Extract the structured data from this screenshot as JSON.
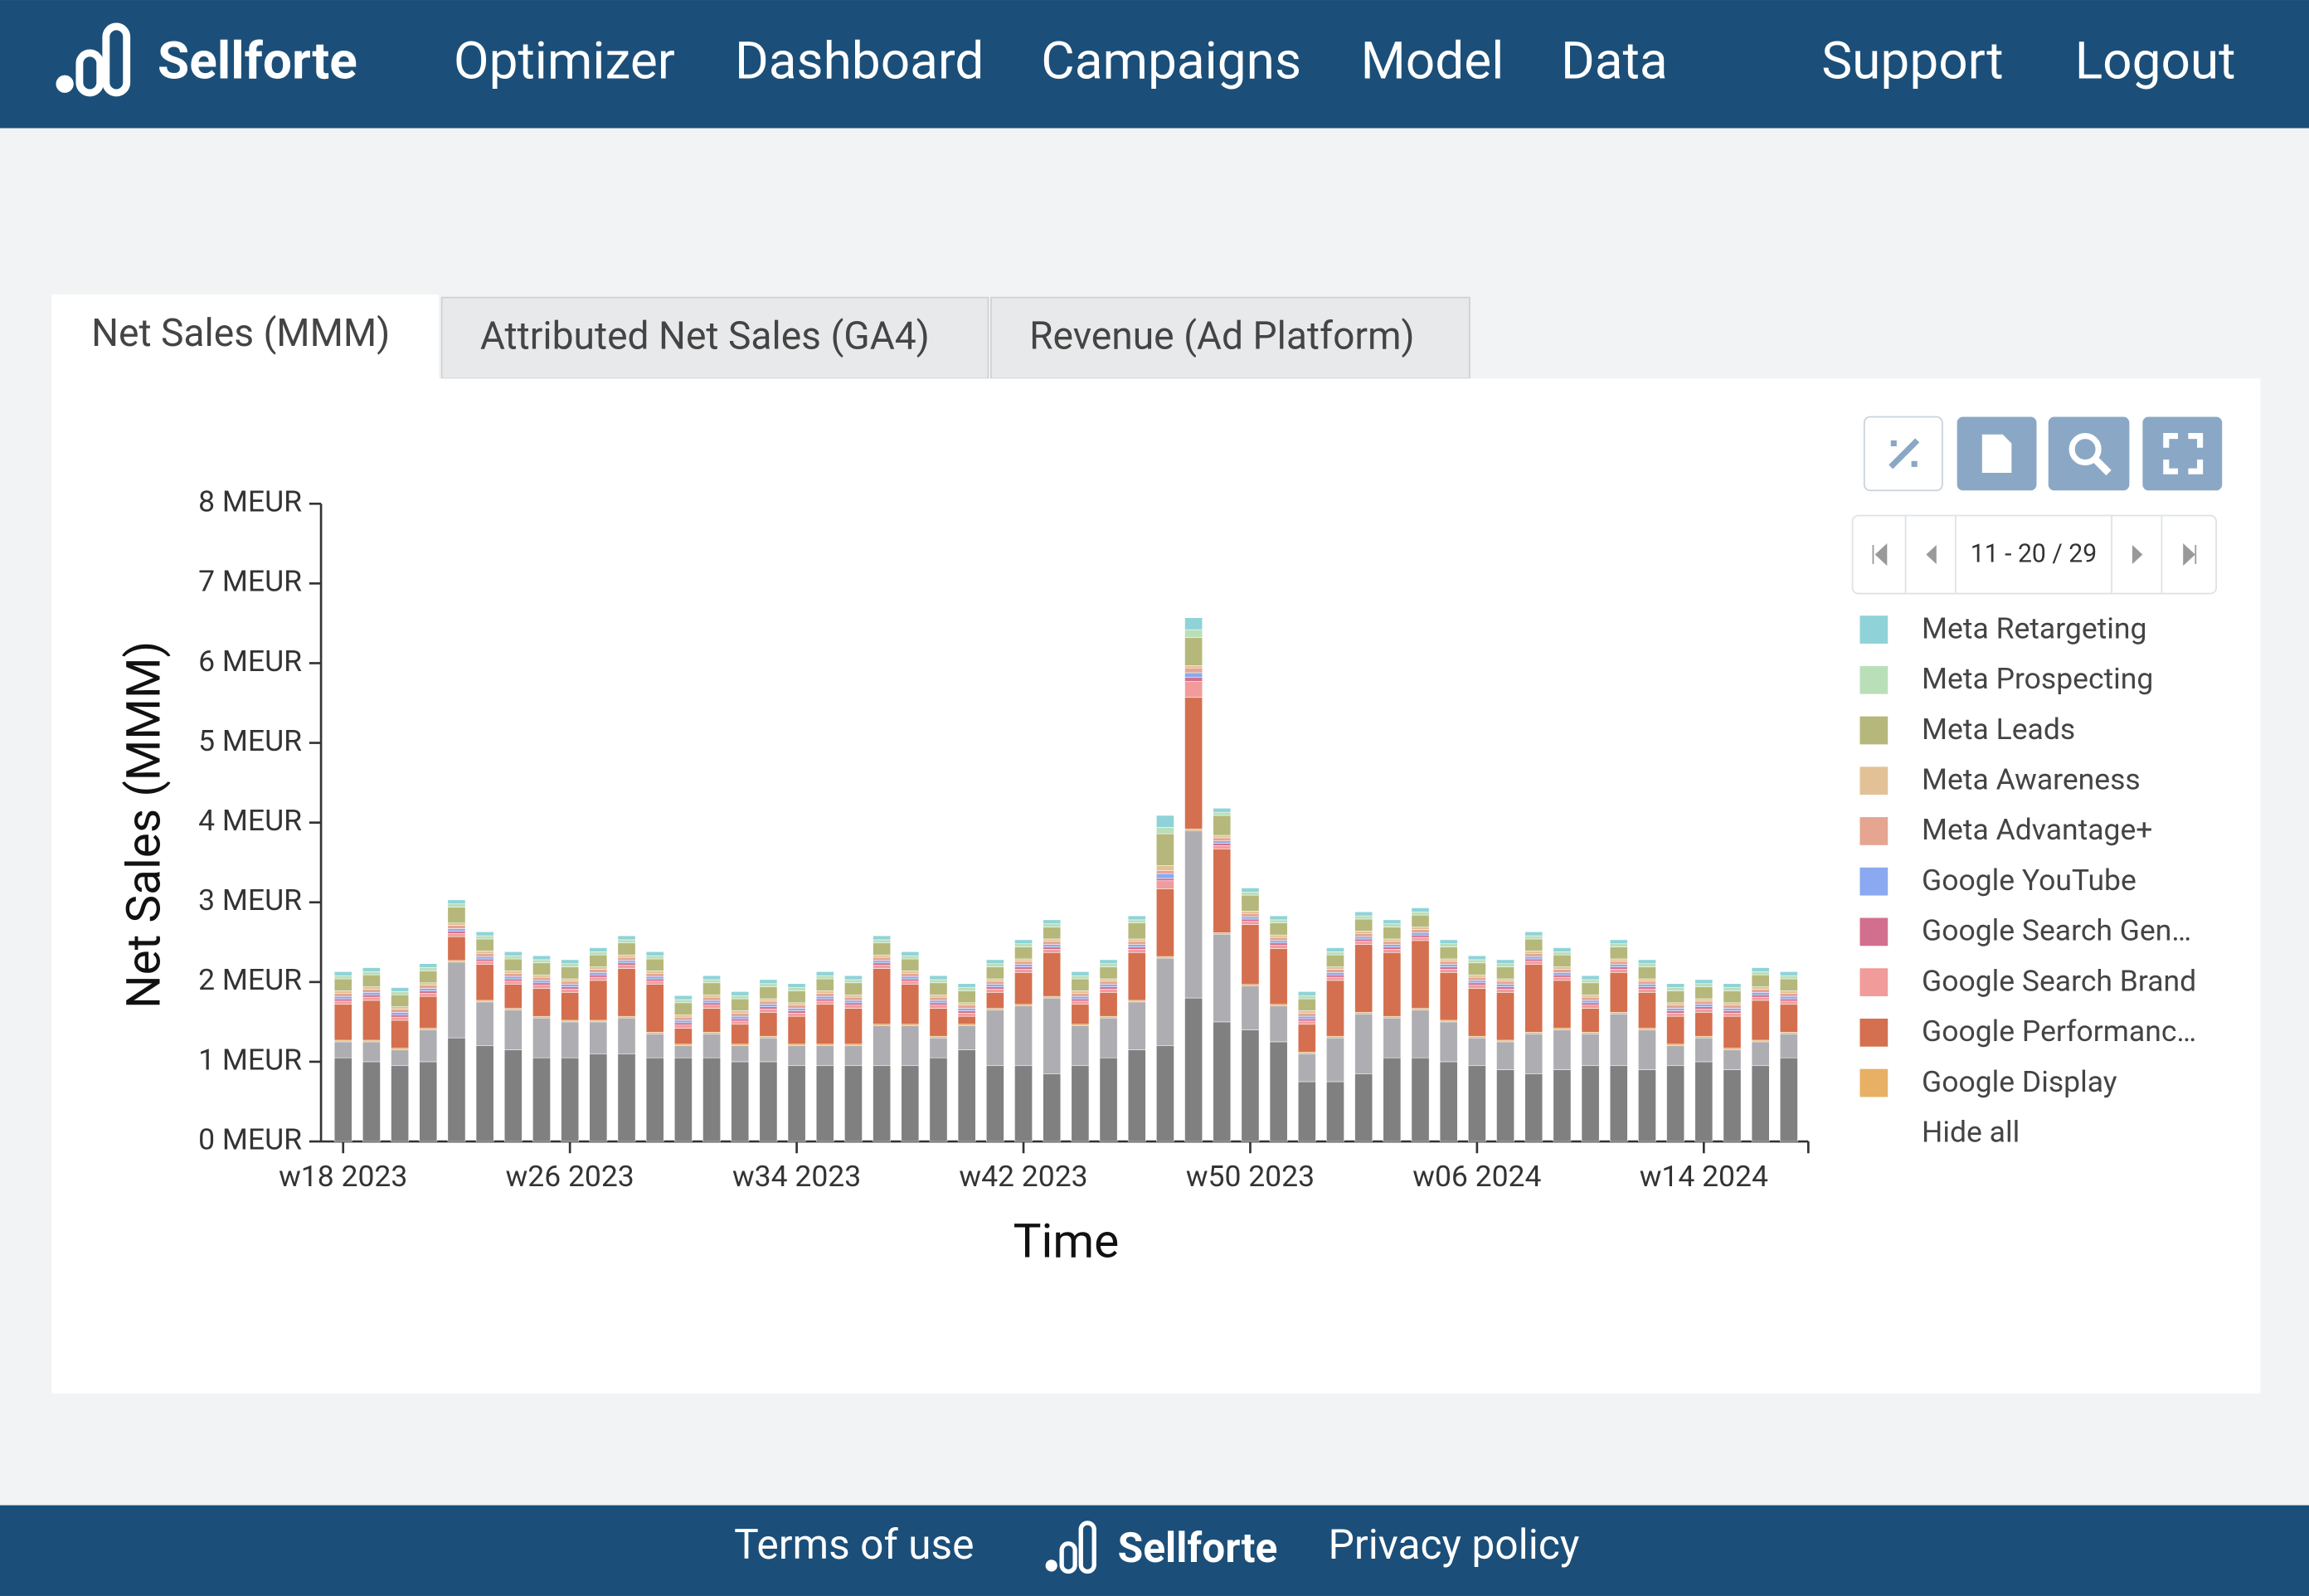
{
  "nav": {
    "brand": "Sellforte",
    "items": [
      "Optimizer",
      "Dashboard",
      "Campaigns",
      "Model",
      "Data",
      "Support",
      "Logout"
    ]
  },
  "tabs": [
    "Net Sales (MMM)",
    "Attributed Net Sales (GA4)",
    "Revenue (Ad Platform)"
  ],
  "pager": "11 - 20 / 29",
  "chart_data": {
    "type": "stacked_bar",
    "xlabel": "Time",
    "ylabel": "Net Sales (MMM)",
    "ylim": [
      0,
      8
    ],
    "yticks": [
      {
        "value": 0,
        "label": "0 MEUR"
      },
      {
        "value": 1,
        "label": "1 MEUR"
      },
      {
        "value": 2,
        "label": "2 MEUR"
      },
      {
        "value": 3,
        "label": "3 MEUR"
      },
      {
        "value": 4,
        "label": "4 MEUR"
      },
      {
        "value": 5,
        "label": "5 MEUR"
      },
      {
        "value": 6,
        "label": "6 MEUR"
      },
      {
        "value": 7,
        "label": "7 MEUR"
      },
      {
        "value": 8,
        "label": "8 MEUR"
      }
    ],
    "categories": [
      "w18 2023",
      null,
      null,
      null,
      null,
      null,
      null,
      null,
      "w26 2023",
      null,
      null,
      null,
      null,
      null,
      null,
      null,
      "w34 2023",
      null,
      null,
      null,
      null,
      null,
      null,
      null,
      "w42 2023",
      null,
      null,
      null,
      null,
      null,
      null,
      null,
      "w50 2023",
      null,
      null,
      null,
      null,
      null,
      null,
      null,
      "w06 2024",
      null,
      null,
      null,
      null,
      null,
      null,
      null,
      "w14 2024",
      null,
      null,
      null
    ],
    "series": [
      {
        "color": "#808080",
        "values": [
          1.05,
          1.0,
          0.95,
          1.0,
          1.3,
          1.2,
          1.15,
          1.05,
          1.05,
          1.1,
          1.1,
          1.05,
          1.05,
          1.05,
          1.0,
          1.0,
          0.95,
          0.95,
          0.95,
          0.95,
          0.95,
          1.05,
          1.15,
          0.95,
          0.95,
          0.85,
          0.95,
          1.05,
          1.15,
          1.2,
          1.8,
          1.5,
          1.4,
          1.25,
          0.75,
          0.75,
          0.85,
          1.05,
          1.05,
          1.0,
          0.95,
          0.9,
          0.85,
          0.9,
          0.95,
          0.95,
          0.9,
          0.95,
          1.0,
          0.9,
          0.95,
          1.05
        ]
      },
      {
        "color": "#aeadb1",
        "values": [
          0.2,
          0.25,
          0.2,
          0.4,
          0.95,
          0.55,
          0.5,
          0.5,
          0.45,
          0.4,
          0.45,
          0.3,
          0.15,
          0.3,
          0.2,
          0.3,
          0.25,
          0.25,
          0.25,
          0.5,
          0.5,
          0.25,
          0.3,
          0.7,
          0.75,
          0.95,
          0.5,
          0.5,
          0.6,
          1.1,
          2.1,
          1.1,
          0.55,
          0.45,
          0.35,
          0.55,
          0.75,
          0.5,
          0.6,
          0.5,
          0.35,
          0.35,
          0.5,
          0.5,
          0.4,
          0.65,
          0.5,
          0.25,
          0.3,
          0.25,
          0.3,
          0.3
        ]
      },
      {
        "name": "Meta Retargeting",
        "color": "#8fd3d8",
        "values": [
          0.05,
          0.05,
          0.05,
          0.05,
          0.05,
          0.05,
          0.05,
          0.05,
          0.05,
          0.05,
          0.05,
          0.05,
          0.05,
          0.05,
          0.05,
          0.05,
          0.05,
          0.05,
          0.05,
          0.05,
          0.05,
          0.05,
          0.05,
          0.05,
          0.05,
          0.05,
          0.05,
          0.05,
          0.05,
          0.15,
          0.15,
          0.05,
          0.05,
          0.05,
          0.05,
          0.05,
          0.05,
          0.05,
          0.05,
          0.05,
          0.05,
          0.05,
          0.05,
          0.05,
          0.05,
          0.05,
          0.05,
          0.05,
          0.05,
          0.05,
          0.05,
          0.05
        ]
      },
      {
        "name": "Meta Prospecting",
        "color": "#b9dfb9",
        "values": [
          0.04,
          0.04,
          0.04,
          0.04,
          0.04,
          0.04,
          0.04,
          0.04,
          0.04,
          0.04,
          0.04,
          0.04,
          0.04,
          0.04,
          0.04,
          0.04,
          0.04,
          0.04,
          0.04,
          0.04,
          0.04,
          0.04,
          0.04,
          0.04,
          0.04,
          0.04,
          0.04,
          0.04,
          0.04,
          0.08,
          0.1,
          0.04,
          0.04,
          0.04,
          0.04,
          0.04,
          0.04,
          0.04,
          0.04,
          0.04,
          0.04,
          0.04,
          0.04,
          0.04,
          0.04,
          0.04,
          0.04,
          0.04,
          0.04,
          0.04,
          0.04,
          0.04
        ]
      },
      {
        "name": "Meta Leads",
        "color": "#b5b87a",
        "values": [
          0.15,
          0.15,
          0.15,
          0.15,
          0.2,
          0.15,
          0.15,
          0.15,
          0.15,
          0.15,
          0.15,
          0.15,
          0.15,
          0.15,
          0.15,
          0.15,
          0.15,
          0.15,
          0.15,
          0.15,
          0.15,
          0.15,
          0.15,
          0.15,
          0.15,
          0.15,
          0.15,
          0.15,
          0.2,
          0.4,
          0.35,
          0.25,
          0.2,
          0.15,
          0.15,
          0.15,
          0.15,
          0.15,
          0.15,
          0.15,
          0.15,
          0.15,
          0.15,
          0.15,
          0.15,
          0.15,
          0.15,
          0.15,
          0.15,
          0.15,
          0.15,
          0.15
        ]
      },
      {
        "name": "Meta Awareness",
        "color": "#e3c196",
        "values": [
          0.03,
          0.03,
          0.03,
          0.03,
          0.03,
          0.03,
          0.03,
          0.03,
          0.03,
          0.03,
          0.03,
          0.03,
          0.03,
          0.03,
          0.03,
          0.03,
          0.03,
          0.03,
          0.03,
          0.03,
          0.03,
          0.03,
          0.03,
          0.03,
          0.03,
          0.03,
          0.03,
          0.03,
          0.03,
          0.06,
          0.03,
          0.03,
          0.03,
          0.03,
          0.03,
          0.03,
          0.03,
          0.03,
          0.03,
          0.03,
          0.03,
          0.03,
          0.03,
          0.03,
          0.03,
          0.03,
          0.03,
          0.03,
          0.03,
          0.03,
          0.03,
          0.03
        ]
      },
      {
        "name": "Meta Advantage+",
        "color": "#e5a590",
        "values": [
          0.04,
          0.04,
          0.04,
          0.04,
          0.04,
          0.04,
          0.04,
          0.04,
          0.04,
          0.04,
          0.04,
          0.04,
          0.04,
          0.04,
          0.04,
          0.04,
          0.04,
          0.04,
          0.04,
          0.04,
          0.04,
          0.04,
          0.04,
          0.04,
          0.04,
          0.04,
          0.04,
          0.04,
          0.04,
          0.04,
          0.06,
          0.04,
          0.04,
          0.04,
          0.04,
          0.04,
          0.04,
          0.04,
          0.04,
          0.04,
          0.04,
          0.04,
          0.04,
          0.04,
          0.04,
          0.04,
          0.04,
          0.04,
          0.04,
          0.04,
          0.04,
          0.04
        ]
      },
      {
        "name": "Google YouTube",
        "color": "#8aa9f0",
        "values": [
          0.03,
          0.03,
          0.03,
          0.03,
          0.03,
          0.03,
          0.03,
          0.03,
          0.03,
          0.03,
          0.03,
          0.03,
          0.03,
          0.03,
          0.03,
          0.03,
          0.03,
          0.03,
          0.03,
          0.03,
          0.03,
          0.03,
          0.03,
          0.03,
          0.03,
          0.03,
          0.03,
          0.03,
          0.03,
          0.06,
          0.06,
          0.03,
          0.03,
          0.03,
          0.03,
          0.03,
          0.03,
          0.03,
          0.03,
          0.03,
          0.03,
          0.03,
          0.03,
          0.03,
          0.03,
          0.03,
          0.03,
          0.03,
          0.03,
          0.03,
          0.03,
          0.03
        ]
      },
      {
        "name": "Google Search Gen…",
        "color": "#d36f8e",
        "values": [
          0.03,
          0.03,
          0.03,
          0.03,
          0.03,
          0.03,
          0.03,
          0.03,
          0.03,
          0.03,
          0.03,
          0.03,
          0.03,
          0.03,
          0.03,
          0.03,
          0.03,
          0.03,
          0.03,
          0.03,
          0.03,
          0.03,
          0.03,
          0.03,
          0.03,
          0.03,
          0.03,
          0.03,
          0.03,
          0.03,
          0.05,
          0.03,
          0.03,
          0.03,
          0.03,
          0.03,
          0.03,
          0.03,
          0.03,
          0.03,
          0.03,
          0.03,
          0.03,
          0.03,
          0.03,
          0.03,
          0.03,
          0.03,
          0.03,
          0.03,
          0.03,
          0.03
        ]
      },
      {
        "name": "Google Search Brand",
        "color": "#f29b9b",
        "values": [
          0.04,
          0.04,
          0.04,
          0.04,
          0.04,
          0.04,
          0.04,
          0.04,
          0.04,
          0.04,
          0.04,
          0.04,
          0.04,
          0.04,
          0.04,
          0.04,
          0.04,
          0.04,
          0.04,
          0.04,
          0.04,
          0.04,
          0.04,
          0.04,
          0.04,
          0.04,
          0.04,
          0.04,
          0.04,
          0.1,
          0.2,
          0.04,
          0.04,
          0.04,
          0.04,
          0.04,
          0.04,
          0.04,
          0.04,
          0.04,
          0.04,
          0.04,
          0.04,
          0.04,
          0.04,
          0.04,
          0.04,
          0.04,
          0.04,
          0.04,
          0.04,
          0.04
        ]
      },
      {
        "name": "Google Performanc…",
        "color": "#d4704f",
        "values": [
          0.45,
          0.5,
          0.35,
          0.4,
          0.3,
          0.45,
          0.3,
          0.35,
          0.35,
          0.5,
          0.6,
          0.6,
          0.2,
          0.3,
          0.25,
          0.3,
          0.35,
          0.5,
          0.45,
          0.7,
          0.5,
          0.35,
          0.1,
          0.2,
          0.4,
          0.55,
          0.25,
          0.3,
          0.6,
          0.85,
          1.65,
          1.05,
          0.75,
          0.7,
          0.35,
          0.7,
          0.85,
          0.8,
          0.85,
          0.6,
          0.6,
          0.6,
          0.85,
          0.6,
          0.3,
          0.5,
          0.45,
          0.35,
          0.3,
          0.4,
          0.5,
          0.35
        ]
      },
      {
        "name": "Google Display",
        "color": "#e8b064",
        "values": [
          0.02,
          0.02,
          0.02,
          0.02,
          0.02,
          0.02,
          0.02,
          0.02,
          0.02,
          0.02,
          0.02,
          0.02,
          0.02,
          0.02,
          0.02,
          0.02,
          0.02,
          0.02,
          0.02,
          0.02,
          0.02,
          0.02,
          0.02,
          0.02,
          0.02,
          0.02,
          0.02,
          0.02,
          0.02,
          0.02,
          0.02,
          0.02,
          0.02,
          0.02,
          0.02,
          0.02,
          0.02,
          0.02,
          0.02,
          0.02,
          0.02,
          0.02,
          0.02,
          0.02,
          0.02,
          0.02,
          0.02,
          0.02,
          0.02,
          0.02,
          0.02,
          0.02
        ]
      }
    ],
    "legend_action": "Hide all"
  },
  "footer": {
    "terms": "Terms of use",
    "brand": "Sellforte",
    "privacy": "Privacy policy"
  }
}
